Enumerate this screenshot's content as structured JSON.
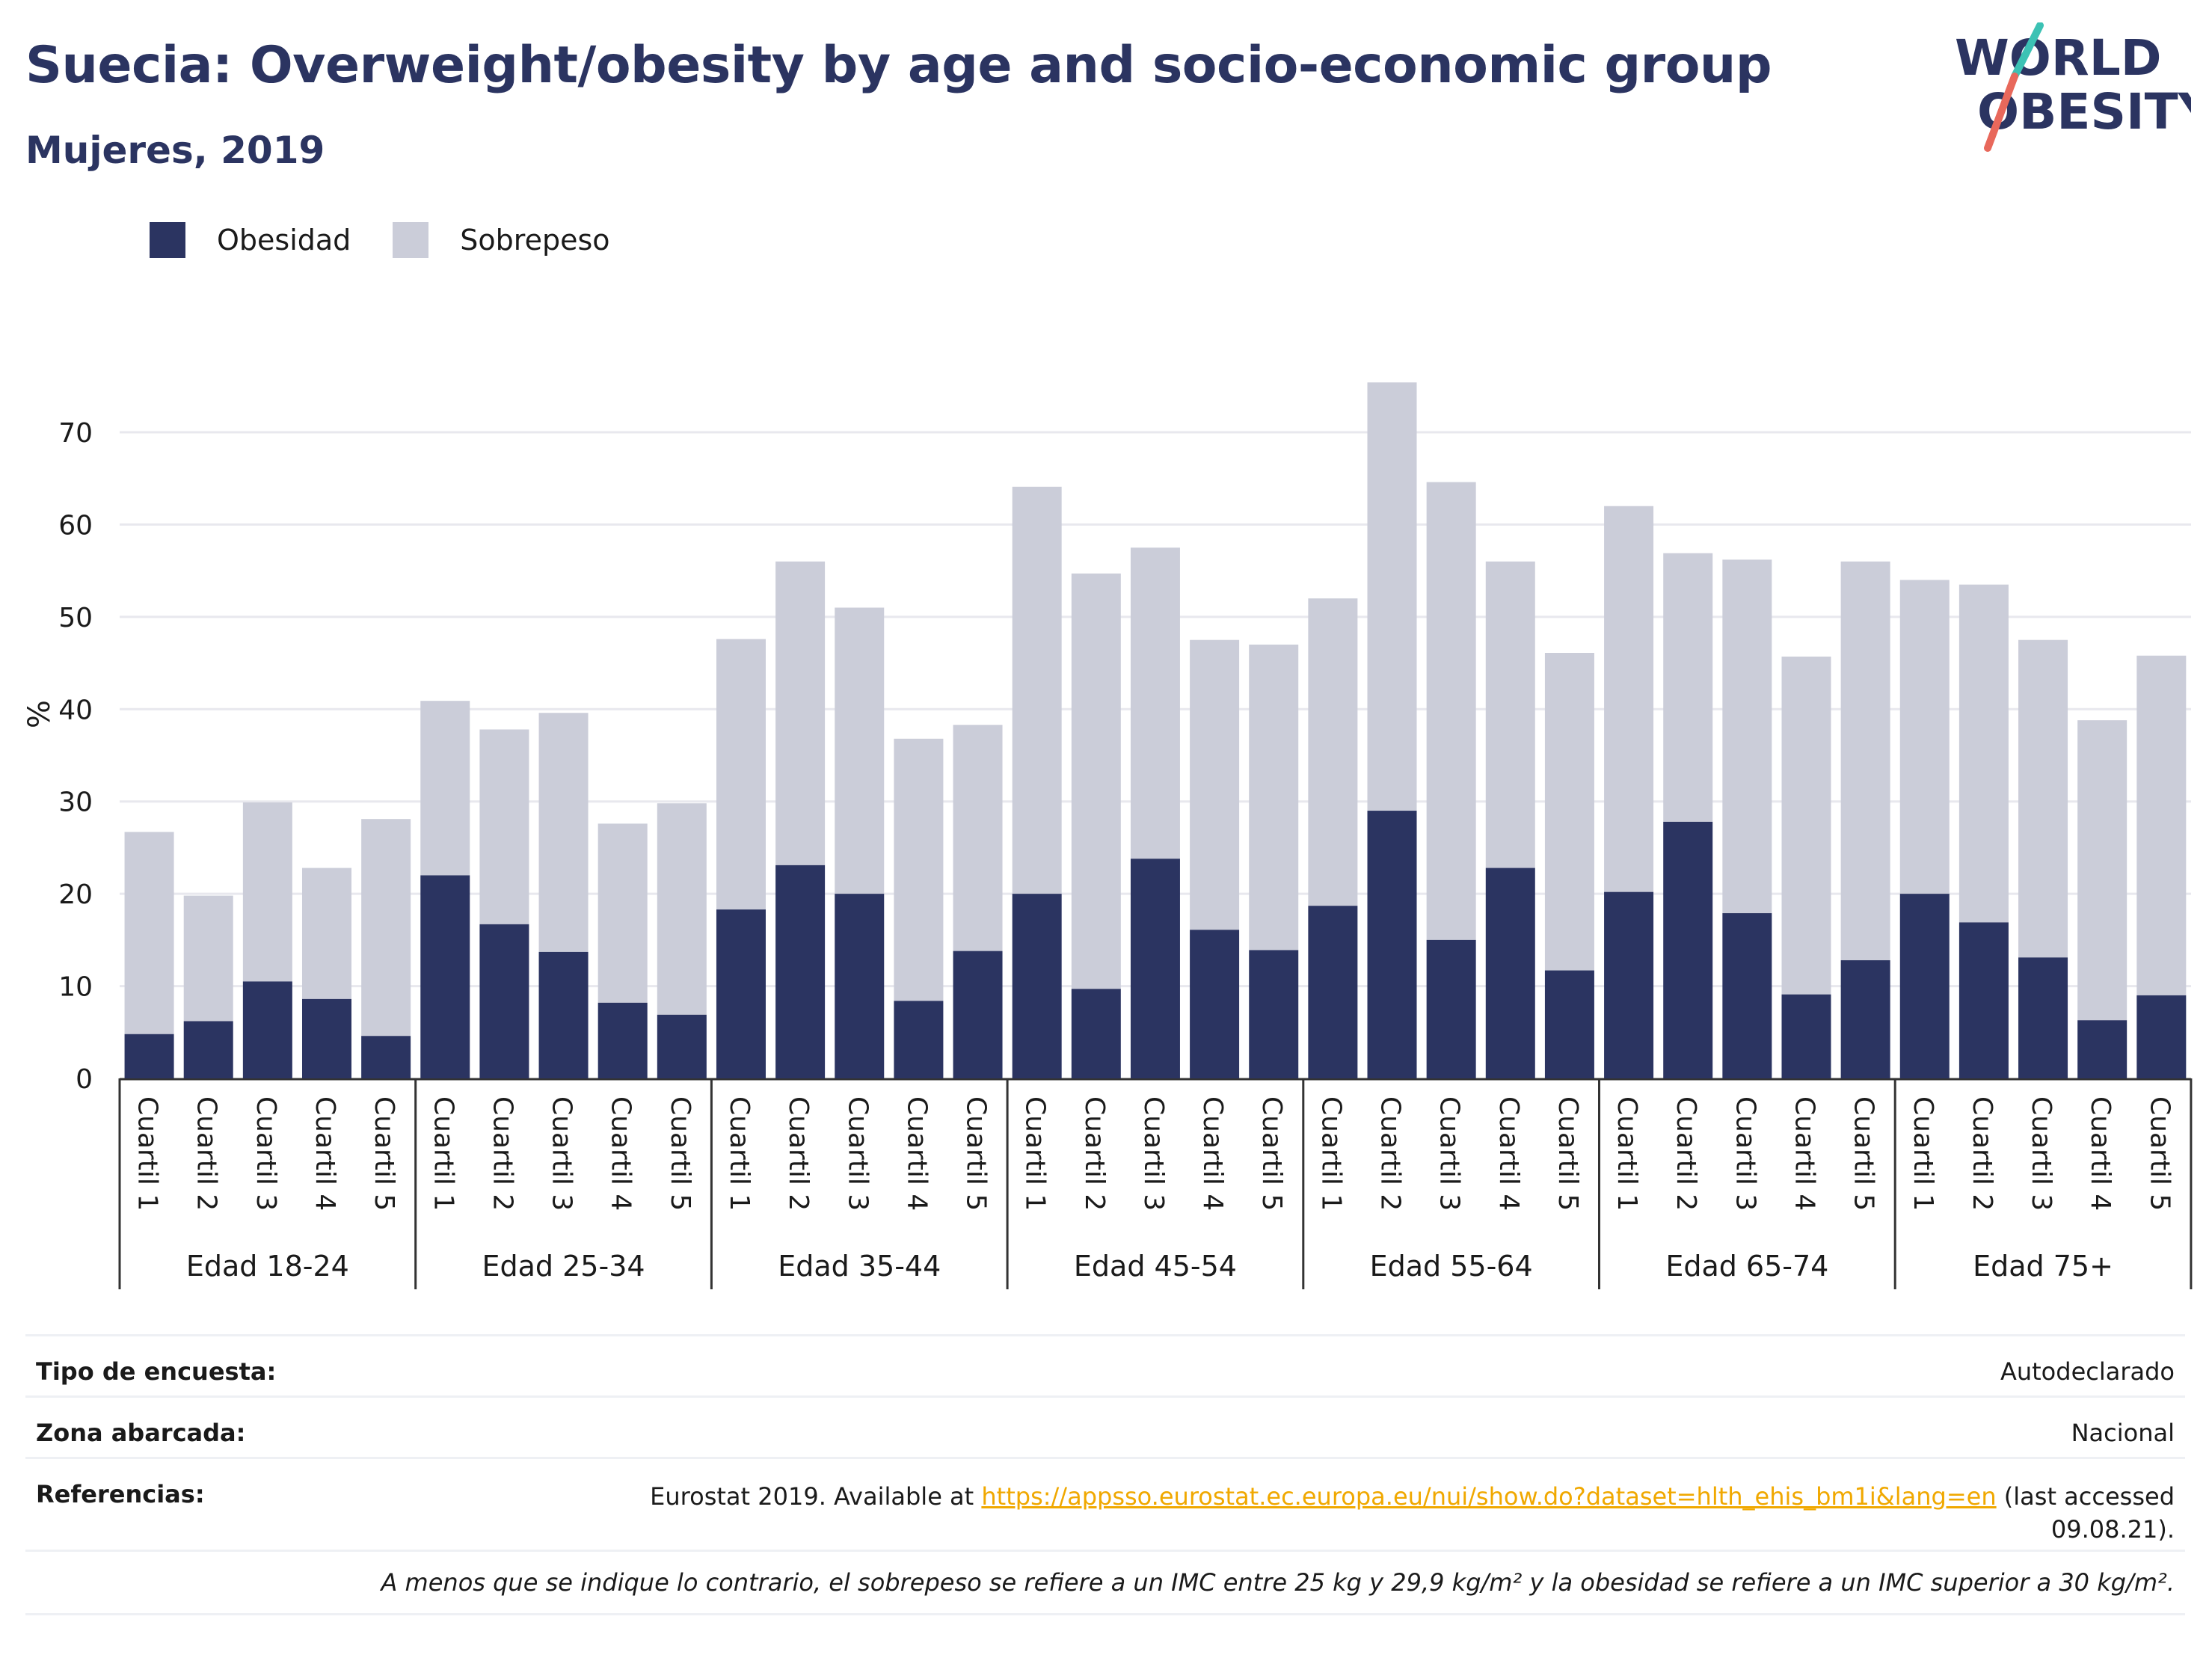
{
  "header": {
    "title": "Suecia: Overweight/obesity by age and socio-economic group",
    "subtitle": "Mujeres, 2019",
    "logo_line1": "WORLD",
    "logo_line2": "OBESITY"
  },
  "legend": {
    "items": [
      {
        "label": "Obesidad",
        "color": "#2b3461"
      },
      {
        "label": "Sobrepeso",
        "color": "#cbcdd9"
      }
    ]
  },
  "chart_data": {
    "type": "bar",
    "stacked": true,
    "ylabel": "%",
    "xlabel": "",
    "ylim": [
      0,
      76
    ],
    "yticks": [
      0,
      10,
      20,
      30,
      40,
      50,
      60,
      70
    ],
    "grid": true,
    "legend_position": "top-left",
    "group_labels": [
      "Edad 18-24",
      "Edad 25-34",
      "Edad 35-44",
      "Edad 45-54",
      "Edad 55-64",
      "Edad 65-74",
      "Edad 75+"
    ],
    "sub_labels": [
      "Cuartil 1",
      "Cuartil 2",
      "Cuartil 3",
      "Cuartil 4",
      "Cuartil 5"
    ],
    "series": [
      {
        "name": "Obesidad",
        "color": "#2b3461",
        "values": [
          [
            4.8,
            6.2,
            10.5,
            8.6,
            4.6
          ],
          [
            22.0,
            16.7,
            13.7,
            8.2,
            6.9
          ],
          [
            18.3,
            23.1,
            20.0,
            8.4,
            13.8
          ],
          [
            20.0,
            9.7,
            23.8,
            16.1,
            13.9
          ],
          [
            18.7,
            29.0,
            15.0,
            22.8,
            11.7
          ],
          [
            20.2,
            27.8,
            17.9,
            9.1,
            12.8
          ],
          [
            20.0,
            16.9,
            13.1,
            6.3,
            9.0
          ]
        ]
      },
      {
        "name": "Sobrepeso",
        "color": "#cbcdd9",
        "values": [
          [
            21.9,
            13.6,
            19.4,
            14.2,
            23.5
          ],
          [
            18.9,
            21.1,
            25.9,
            19.4,
            22.9
          ],
          [
            29.3,
            32.9,
            31.0,
            28.4,
            24.5
          ],
          [
            44.1,
            45.0,
            33.7,
            31.4,
            33.1
          ],
          [
            33.3,
            46.4,
            49.6,
            33.2,
            34.4
          ],
          [
            41.8,
            29.1,
            38.3,
            36.6,
            43.2
          ],
          [
            34.0,
            36.6,
            34.4,
            32.5,
            36.8
          ]
        ]
      }
    ]
  },
  "metadata": {
    "rows": [
      {
        "label": "Tipo de encuesta:",
        "value": "Autodeclarado"
      },
      {
        "label": "Zona abarcada:",
        "value": "Nacional"
      },
      {
        "label": "Referencias:",
        "value_prefix": "Eurostat 2019. Available at ",
        "value_link": "https://appsso.eurostat.ec.europa.eu/nui/show.do?dataset=hlth_ehis_bm1i&lang=en",
        "value_suffix_line1": " (last accessed",
        "value_suffix_line2": "09.08.21)."
      }
    ],
    "note": "A menos que se indique lo contrario, el sobrepeso se refiere a un IMC entre 25 kg y 29,9 kg/m² y la obesidad se refiere a un IMC superior a 30 kg/m²."
  }
}
